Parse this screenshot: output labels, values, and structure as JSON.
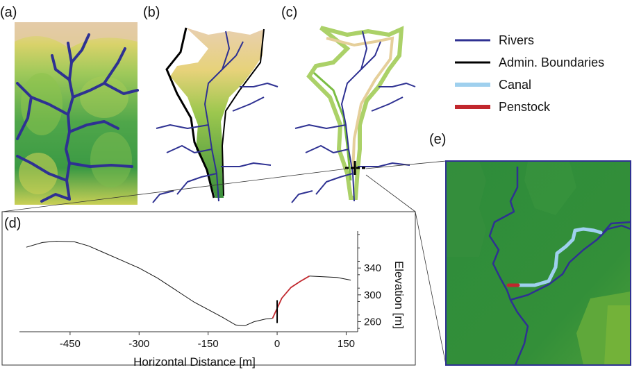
{
  "panels": {
    "a": "(a)",
    "b": "(b)",
    "c": "(c)",
    "d": "(d)",
    "e": "(e)"
  },
  "legend": [
    {
      "label": "Rivers",
      "color": "#2e3192"
    },
    {
      "label": "Admin. Boundaries",
      "color": "#000000"
    },
    {
      "label": "Canal",
      "color": "#9fd0ee"
    },
    {
      "label": "Penstock",
      "color": "#c1272d"
    }
  ],
  "colors": {
    "river": "#2e3192",
    "canal": "#9fd0ee",
    "penstock": "#c1272d",
    "terrain_low": "#2f8f3a",
    "terrain_high": "#e6d29a"
  },
  "chart_data": {
    "type": "line",
    "xlabel": "Horizontal Distance [m]",
    "ylabel": "Elevation [m]",
    "xlim": [
      -560,
      175
    ],
    "ylim": [
      245,
      395
    ],
    "xticks": [
      -450,
      -300,
      -150,
      0,
      150
    ],
    "yticks": [
      260,
      300,
      340
    ],
    "series": [
      {
        "values": [
          [
            -545,
            371
          ],
          [
            -510,
            378
          ],
          [
            -480,
            380
          ],
          [
            -440,
            379
          ],
          [
            -410,
            373
          ],
          [
            -380,
            364
          ],
          [
            -340,
            352
          ],
          [
            -300,
            340
          ],
          [
            -260,
            325
          ],
          [
            -220,
            307
          ],
          [
            -180,
            289
          ],
          [
            -150,
            278
          ],
          [
            -120,
            267
          ],
          [
            -90,
            255
          ],
          [
            -70,
            254
          ],
          [
            -50,
            260
          ],
          [
            -25,
            264
          ],
          [
            -10,
            265
          ]
        ]
      },
      {
        "values": [
          [
            -10,
            265
          ],
          [
            10,
            295
          ],
          [
            30,
            311
          ],
          [
            50,
            320
          ],
          [
            70,
            328
          ]
        ]
      },
      {
        "values": [
          [
            70,
            328
          ],
          [
            100,
            327
          ],
          [
            130,
            326
          ],
          [
            160,
            322
          ]
        ]
      }
    ],
    "marker_x": 0
  }
}
